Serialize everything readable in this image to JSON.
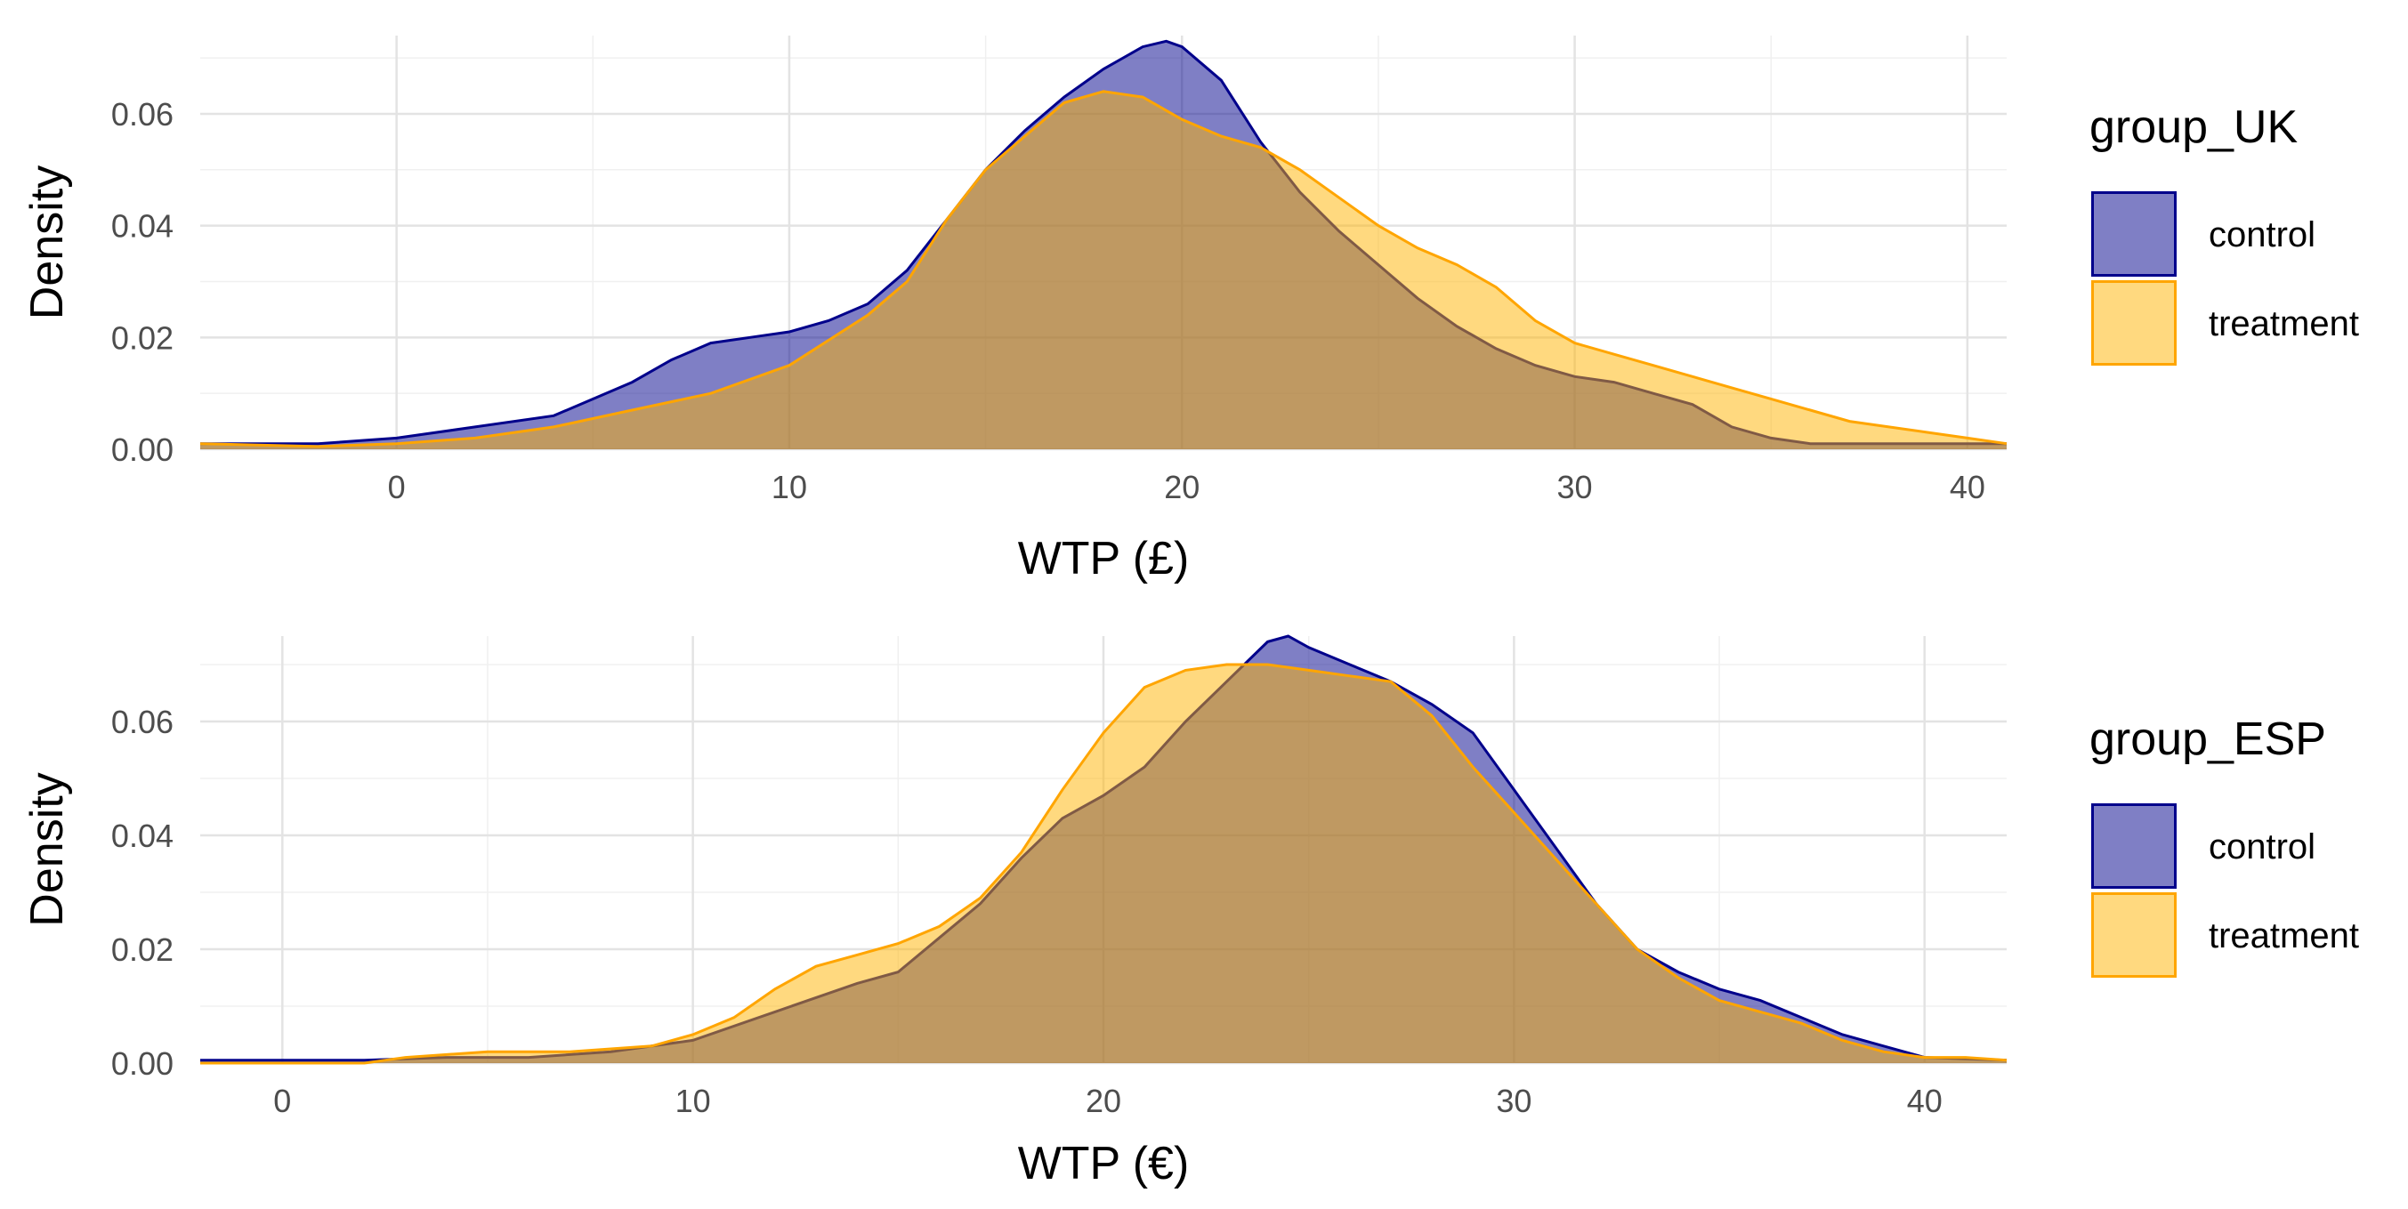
{
  "chart_data": [
    {
      "type": "area",
      "subtype": "density",
      "xlabel": "WTP (£)",
      "ylabel": "Density",
      "xlim": [
        -5,
        41
      ],
      "ylim": [
        0,
        0.074
      ],
      "x_ticks": [
        0,
        10,
        20,
        30,
        40
      ],
      "y_ticks": [
        0,
        0.02,
        0.04,
        0.06
      ],
      "y_tick_labels": [
        "0.00",
        "0.02",
        "0.04",
        "0.06"
      ],
      "legend_title": "group_UK",
      "legend_position": "right",
      "series": [
        {
          "name": "control",
          "fill": "#00008B",
          "fill_opacity": 0.5,
          "stroke": "#00008B",
          "points": [
            [
              -5,
              0.001
            ],
            [
              -2,
              0.001
            ],
            [
              0,
              0.002
            ],
            [
              2,
              0.004
            ],
            [
              4,
              0.006
            ],
            [
              6,
              0.012
            ],
            [
              7,
              0.016
            ],
            [
              8,
              0.019
            ],
            [
              9,
              0.02
            ],
            [
              10,
              0.021
            ],
            [
              11,
              0.023
            ],
            [
              12,
              0.026
            ],
            [
              13,
              0.032
            ],
            [
              14,
              0.041
            ],
            [
              15,
              0.05
            ],
            [
              16,
              0.057
            ],
            [
              17,
              0.063
            ],
            [
              18,
              0.068
            ],
            [
              19,
              0.072
            ],
            [
              19.6,
              0.073
            ],
            [
              20,
              0.072
            ],
            [
              21,
              0.066
            ],
            [
              22,
              0.055
            ],
            [
              23,
              0.046
            ],
            [
              24,
              0.039
            ],
            [
              25,
              0.033
            ],
            [
              26,
              0.027
            ],
            [
              27,
              0.022
            ],
            [
              28,
              0.018
            ],
            [
              29,
              0.015
            ],
            [
              30,
              0.013
            ],
            [
              31,
              0.012
            ],
            [
              32,
              0.01
            ],
            [
              33,
              0.008
            ],
            [
              34,
              0.004
            ],
            [
              35,
              0.002
            ],
            [
              36,
              0.001
            ],
            [
              38,
              0.001
            ],
            [
              41,
              0.001
            ]
          ]
        },
        {
          "name": "treatment",
          "fill": "#FFB300",
          "fill_opacity": 0.5,
          "stroke": "#FFA500",
          "points": [
            [
              -5,
              0.001
            ],
            [
              -2,
              0.0005
            ],
            [
              0,
              0.001
            ],
            [
              2,
              0.002
            ],
            [
              4,
              0.004
            ],
            [
              6,
              0.007
            ],
            [
              8,
              0.01
            ],
            [
              10,
              0.015
            ],
            [
              12,
              0.024
            ],
            [
              13,
              0.03
            ],
            [
              14,
              0.041
            ],
            [
              15,
              0.05
            ],
            [
              16,
              0.056
            ],
            [
              17,
              0.062
            ],
            [
              18,
              0.064
            ],
            [
              19,
              0.063
            ],
            [
              20,
              0.059
            ],
            [
              21,
              0.056
            ],
            [
              22,
              0.054
            ],
            [
              23,
              0.05
            ],
            [
              24,
              0.045
            ],
            [
              25,
              0.04
            ],
            [
              26,
              0.036
            ],
            [
              27,
              0.033
            ],
            [
              28,
              0.029
            ],
            [
              29,
              0.023
            ],
            [
              30,
              0.019
            ],
            [
              31,
              0.017
            ],
            [
              32,
              0.015
            ],
            [
              33,
              0.013
            ],
            [
              34,
              0.011
            ],
            [
              35,
              0.009
            ],
            [
              36,
              0.007
            ],
            [
              37,
              0.005
            ],
            [
              38,
              0.004
            ],
            [
              39,
              0.003
            ],
            [
              40,
              0.002
            ],
            [
              41,
              0.001
            ]
          ]
        }
      ]
    },
    {
      "type": "area",
      "subtype": "density",
      "xlabel": "WTP (€)",
      "ylabel": "Density",
      "xlim": [
        -2,
        42
      ],
      "ylim": [
        0,
        0.075
      ],
      "x_ticks": [
        0,
        10,
        20,
        30,
        40
      ],
      "y_ticks": [
        0,
        0.02,
        0.04,
        0.06
      ],
      "y_tick_labels": [
        "0.00",
        "0.02",
        "0.04",
        "0.06"
      ],
      "legend_title": "group_ESP",
      "legend_position": "right",
      "series": [
        {
          "name": "control",
          "fill": "#00008B",
          "fill_opacity": 0.5,
          "stroke": "#00008B",
          "points": [
            [
              -2,
              0.0005
            ],
            [
              2,
              0.0005
            ],
            [
              4,
              0.001
            ],
            [
              6,
              0.001
            ],
            [
              8,
              0.002
            ],
            [
              10,
              0.004
            ],
            [
              12,
              0.009
            ],
            [
              14,
              0.014
            ],
            [
              15,
              0.016
            ],
            [
              16,
              0.022
            ],
            [
              17,
              0.028
            ],
            [
              18,
              0.036
            ],
            [
              19,
              0.043
            ],
            [
              20,
              0.047
            ],
            [
              21,
              0.052
            ],
            [
              22,
              0.06
            ],
            [
              23,
              0.067
            ],
            [
              24,
              0.074
            ],
            [
              24.5,
              0.075
            ],
            [
              25,
              0.073
            ],
            [
              26,
              0.07
            ],
            [
              27,
              0.067
            ],
            [
              28,
              0.063
            ],
            [
              29,
              0.058
            ],
            [
              30,
              0.048
            ],
            [
              31,
              0.038
            ],
            [
              32,
              0.028
            ],
            [
              33,
              0.02
            ],
            [
              34,
              0.016
            ],
            [
              35,
              0.013
            ],
            [
              36,
              0.011
            ],
            [
              37,
              0.008
            ],
            [
              38,
              0.005
            ],
            [
              39,
              0.003
            ],
            [
              40,
              0.001
            ],
            [
              42,
              0.0005
            ]
          ]
        },
        {
          "name": "treatment",
          "fill": "#FFB300",
          "fill_opacity": 0.5,
          "stroke": "#FFA500",
          "points": [
            [
              -2,
              0
            ],
            [
              2,
              0
            ],
            [
              3,
              0.001
            ],
            [
              5,
              0.002
            ],
            [
              7,
              0.002
            ],
            [
              9,
              0.003
            ],
            [
              10,
              0.005
            ],
            [
              11,
              0.008
            ],
            [
              12,
              0.013
            ],
            [
              13,
              0.017
            ],
            [
              14,
              0.019
            ],
            [
              15,
              0.021
            ],
            [
              16,
              0.024
            ],
            [
              17,
              0.029
            ],
            [
              18,
              0.037
            ],
            [
              19,
              0.048
            ],
            [
              20,
              0.058
            ],
            [
              21,
              0.066
            ],
            [
              22,
              0.069
            ],
            [
              23,
              0.07
            ],
            [
              24,
              0.07
            ],
            [
              25,
              0.069
            ],
            [
              26,
              0.068
            ],
            [
              27,
              0.067
            ],
            [
              28,
              0.061
            ],
            [
              29,
              0.052
            ],
            [
              30,
              0.044
            ],
            [
              31,
              0.036
            ],
            [
              32,
              0.028
            ],
            [
              33,
              0.02
            ],
            [
              34,
              0.015
            ],
            [
              35,
              0.011
            ],
            [
              36,
              0.009
            ],
            [
              37,
              0.007
            ],
            [
              38,
              0.004
            ],
            [
              39,
              0.002
            ],
            [
              40,
              0.001
            ],
            [
              41,
              0.001
            ],
            [
              42,
              0.0005
            ]
          ]
        }
      ]
    }
  ]
}
